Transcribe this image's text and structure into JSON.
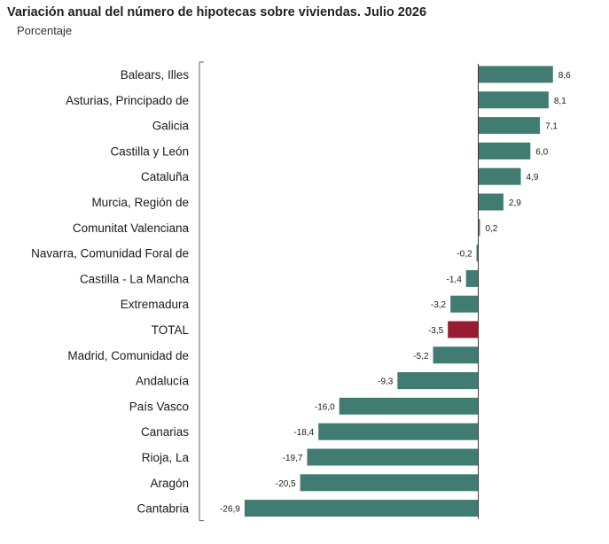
{
  "header": {
    "title": "Variación anual del número de hipotecas sobre viviendas. Julio 2026",
    "subtitle": "Porcentaje"
  },
  "colors": {
    "bar": "#417c72",
    "highlight": "#9a1b34"
  },
  "chart_data": {
    "type": "bar",
    "orientation": "horizontal",
    "title": "Variación anual del número de hipotecas sobre viviendas. Julio 2026",
    "subtitle": "Porcentaje",
    "categories": [
      "Balears, Illes",
      "Asturias, Principado de",
      "Galicia",
      "Castilla y León",
      "Cataluña",
      "Murcia, Región de",
      "Comunitat Valenciana",
      "Navarra, Comunidad Foral de",
      "Castilla - La Mancha",
      "Extremadura",
      "TOTAL",
      "Madrid, Comunidad de",
      "Andalucía",
      "País Vasco",
      "Canarias",
      "Rioja, La",
      "Aragón",
      "Cantabria"
    ],
    "values": [
      8.6,
      8.1,
      7.1,
      6.0,
      4.9,
      2.9,
      0.2,
      -0.2,
      -1.4,
      -3.2,
      -3.5,
      -5.2,
      -9.3,
      -16.0,
      -18.4,
      -19.7,
      -20.5,
      -26.9
    ],
    "value_labels": [
      "8,6",
      "8,1",
      "7,1",
      "6,0",
      "4,9",
      "2,9",
      "0,2",
      "-0,2",
      "-1,4",
      "-3,2",
      "-3,5",
      "-5,2",
      "-9,3",
      "-16,0",
      "-18,4",
      "-19,7",
      "-20,5",
      "-26,9"
    ],
    "highlight": "TOTAL",
    "grid": false,
    "legend": "none"
  }
}
